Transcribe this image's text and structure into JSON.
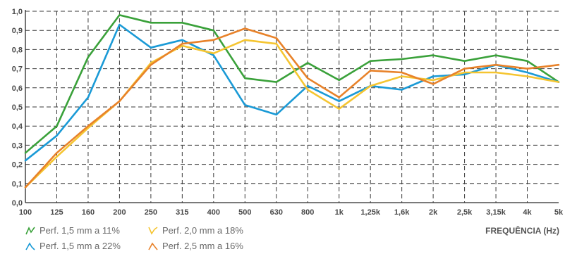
{
  "chart_data": {
    "type": "line",
    "xlabel": "FREQUÊNCIA (Hz)",
    "ylabel": "",
    "categories": [
      "100",
      "125",
      "160",
      "200",
      "250",
      "315",
      "400",
      "500",
      "630",
      "800",
      "1k",
      "1,25k",
      "1,6k",
      "2k",
      "2,5k",
      "3,15k",
      "4k",
      "5k"
    ],
    "ylim": [
      0,
      1.0
    ],
    "yticks": [
      "0,0",
      "0,1",
      "0,2",
      "0,3",
      "0,4",
      "0,5",
      "0,6",
      "0,7",
      "0,8",
      "0,9",
      "1,0"
    ],
    "grid": true,
    "legend_position": "bottom-left",
    "series": [
      {
        "name": "Perf. 1,5 mm a 11%",
        "color": "#3aa13a",
        "values": [
          0.26,
          0.4,
          0.76,
          0.98,
          0.94,
          0.94,
          0.9,
          0.65,
          0.63,
          0.73,
          0.64,
          0.74,
          0.75,
          0.77,
          0.74,
          0.77,
          0.74,
          0.63
        ]
      },
      {
        "name": "Perf. 1,5 mm a 22%",
        "color": "#1a9ad6",
        "values": [
          0.22,
          0.35,
          0.55,
          0.93,
          0.81,
          0.85,
          0.77,
          0.51,
          0.46,
          0.61,
          0.53,
          0.61,
          0.59,
          0.66,
          0.67,
          0.72,
          0.68,
          0.63
        ]
      },
      {
        "name": "Perf. 2,0 mm a 18%",
        "color": "#f5c531",
        "values": [
          0.08,
          0.24,
          0.39,
          0.53,
          0.73,
          0.82,
          0.78,
          0.85,
          0.83,
          0.59,
          0.49,
          0.61,
          0.66,
          0.64,
          0.68,
          0.68,
          0.66,
          0.63
        ]
      },
      {
        "name": "Perf. 2,5 mm a 16%",
        "color": "#e8822a",
        "values": [
          0.08,
          0.26,
          0.4,
          0.53,
          0.72,
          0.83,
          0.85,
          0.91,
          0.86,
          0.65,
          0.55,
          0.69,
          0.68,
          0.62,
          0.7,
          0.72,
          0.7,
          0.72
        ]
      }
    ]
  },
  "legend": {
    "item1": "Perf. 1,5 mm a 11%",
    "item2": "Perf. 2,0 mm a 18%",
    "item3": "Perf. 1,5 mm a 22%",
    "item4": "Perf. 2,5 mm a 16%"
  }
}
